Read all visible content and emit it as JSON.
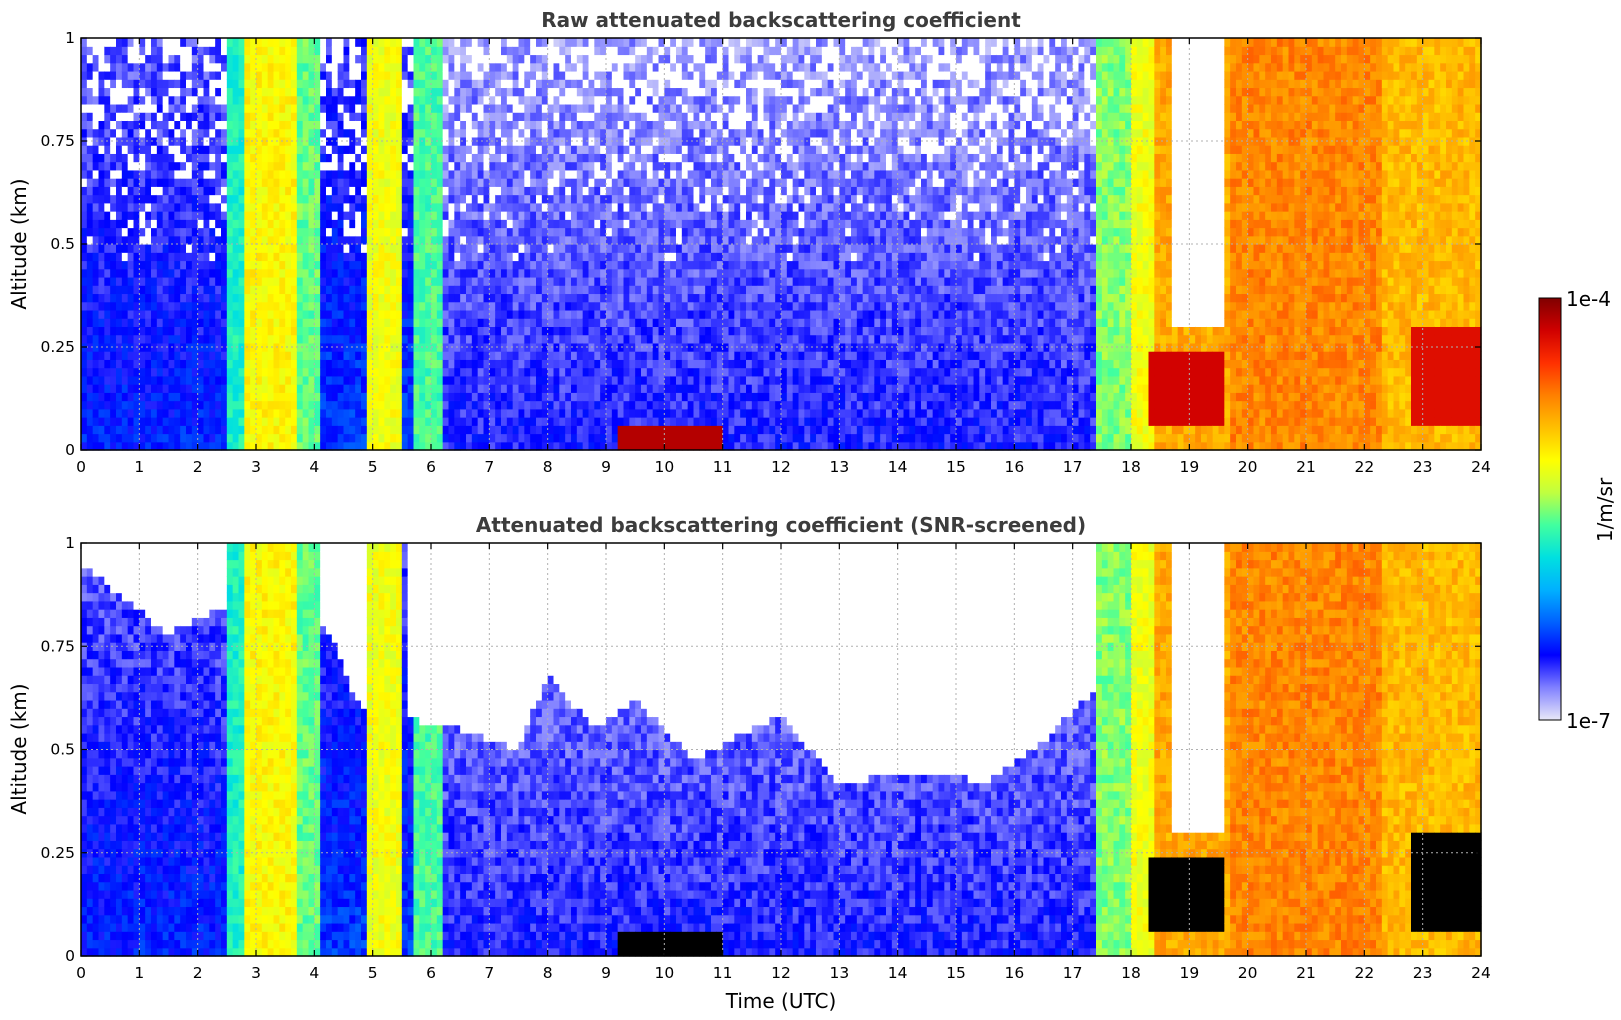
{
  "chart_data": [
    {
      "type": "heatmap",
      "title": "Raw attenuated backscattering coefficient",
      "xlabel": "",
      "ylabel": "Altitude (km)",
      "xlim": [
        0,
        24
      ],
      "ylim": [
        0,
        1
      ],
      "xticks": [
        "0",
        "1",
        "2",
        "3",
        "4",
        "5",
        "6",
        "7",
        "8",
        "9",
        "10",
        "11",
        "12",
        "13",
        "14",
        "15",
        "16",
        "17",
        "18",
        "19",
        "20",
        "21",
        "22",
        "23",
        "24"
      ],
      "yticks": [
        "0",
        "0.25",
        "0.5",
        "0.75",
        "1"
      ],
      "grid": true,
      "color_scale": "log",
      "value_range": [
        "1e-7",
        "1e-4"
      ],
      "screened": false,
      "time_segments": [
        {
          "t0": 0.0,
          "t1": 2.5,
          "level": 0.18
        },
        {
          "t0": 2.5,
          "t1": 2.8,
          "level": 0.42
        },
        {
          "t0": 2.8,
          "t1": 3.7,
          "level": 0.62
        },
        {
          "t0": 3.7,
          "t1": 4.1,
          "level": 0.48
        },
        {
          "t0": 4.1,
          "t1": 4.9,
          "level": 0.2
        },
        {
          "t0": 4.9,
          "t1": 5.55,
          "level": 0.6
        },
        {
          "t0": 5.55,
          "t1": 5.75,
          "level": 0.2
        },
        {
          "t0": 5.75,
          "t1": 6.2,
          "level": 0.46
        },
        {
          "t0": 6.2,
          "t1": 17.45,
          "level": 0.14
        },
        {
          "t0": 17.45,
          "t1": 18.0,
          "level": 0.5
        },
        {
          "t0": 18.0,
          "t1": 18.4,
          "level": 0.6
        },
        {
          "t0": 18.4,
          "t1": 19.7,
          "level": 0.72
        },
        {
          "t0": 19.7,
          "t1": 22.3,
          "level": 0.76
        },
        {
          "t0": 22.3,
          "t1": 24.0,
          "level": 0.7
        }
      ]
    },
    {
      "type": "heatmap",
      "title": "Attenuated backscattering coefficient (SNR-screened)",
      "xlabel": "Time (UTC)",
      "ylabel": "Altitude (km)",
      "xlim": [
        0,
        24
      ],
      "ylim": [
        0,
        1
      ],
      "xticks": [
        "0",
        "1",
        "2",
        "3",
        "4",
        "5",
        "6",
        "7",
        "8",
        "9",
        "10",
        "11",
        "12",
        "13",
        "14",
        "15",
        "16",
        "17",
        "18",
        "19",
        "20",
        "21",
        "22",
        "23",
        "24"
      ],
      "yticks": [
        "0",
        "0.25",
        "0.5",
        "0.75",
        "1"
      ],
      "grid": true,
      "color_scale": "log",
      "value_range": [
        "1e-7",
        "1e-4"
      ],
      "screened": true,
      "screen_top_km": [
        {
          "t": 0.0,
          "z": 0.95
        },
        {
          "t": 1.5,
          "z": 0.78
        },
        {
          "t": 2.5,
          "z": 0.85
        },
        {
          "t": 4.2,
          "z": 0.8
        },
        {
          "t": 4.8,
          "z": 0.6
        },
        {
          "t": 6.5,
          "z": 0.55
        },
        {
          "t": 7.5,
          "z": 0.5
        },
        {
          "t": 8.0,
          "z": 0.68
        },
        {
          "t": 8.8,
          "z": 0.55
        },
        {
          "t": 9.5,
          "z": 0.62
        },
        {
          "t": 10.5,
          "z": 0.48
        },
        {
          "t": 12.0,
          "z": 0.58
        },
        {
          "t": 13.0,
          "z": 0.42
        },
        {
          "t": 14.5,
          "z": 0.45
        },
        {
          "t": 15.5,
          "z": 0.42
        },
        {
          "t": 16.5,
          "z": 0.52
        },
        {
          "t": 17.4,
          "z": 0.65
        }
      ]
    }
  ],
  "colorbar": {
    "max_label": "1e-4",
    "min_label": "1e-7",
    "unit_label": "1/m/sr",
    "colors": [
      "#e8e8f8",
      "#8080ff",
      "#0000ff",
      "#0060ff",
      "#00b0ff",
      "#00e0e0",
      "#40ffa0",
      "#c0ff40",
      "#ffff00",
      "#ffc000",
      "#ff8000",
      "#ff3000",
      "#d00000",
      "#800000"
    ]
  }
}
